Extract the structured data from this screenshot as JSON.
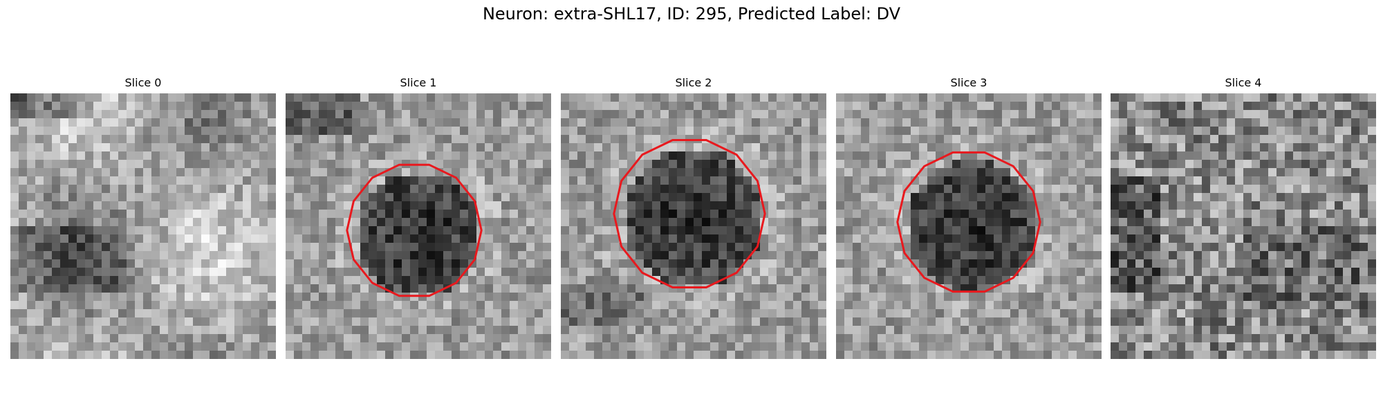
{
  "figure": {
    "title": "Neuron: extra-SHL17, ID: 295, Predicted Label: DV"
  },
  "colors": {
    "contour": "#e8191e",
    "background": "#ffffff"
  },
  "panels": [
    {
      "title": "Slice 0",
      "has_contour": false
    },
    {
      "title": "Slice 1",
      "has_contour": true
    },
    {
      "title": "Slice 2",
      "has_contour": true
    },
    {
      "title": "Slice 3",
      "has_contour": true
    },
    {
      "title": "Slice 4",
      "has_contour": false
    }
  ]
}
